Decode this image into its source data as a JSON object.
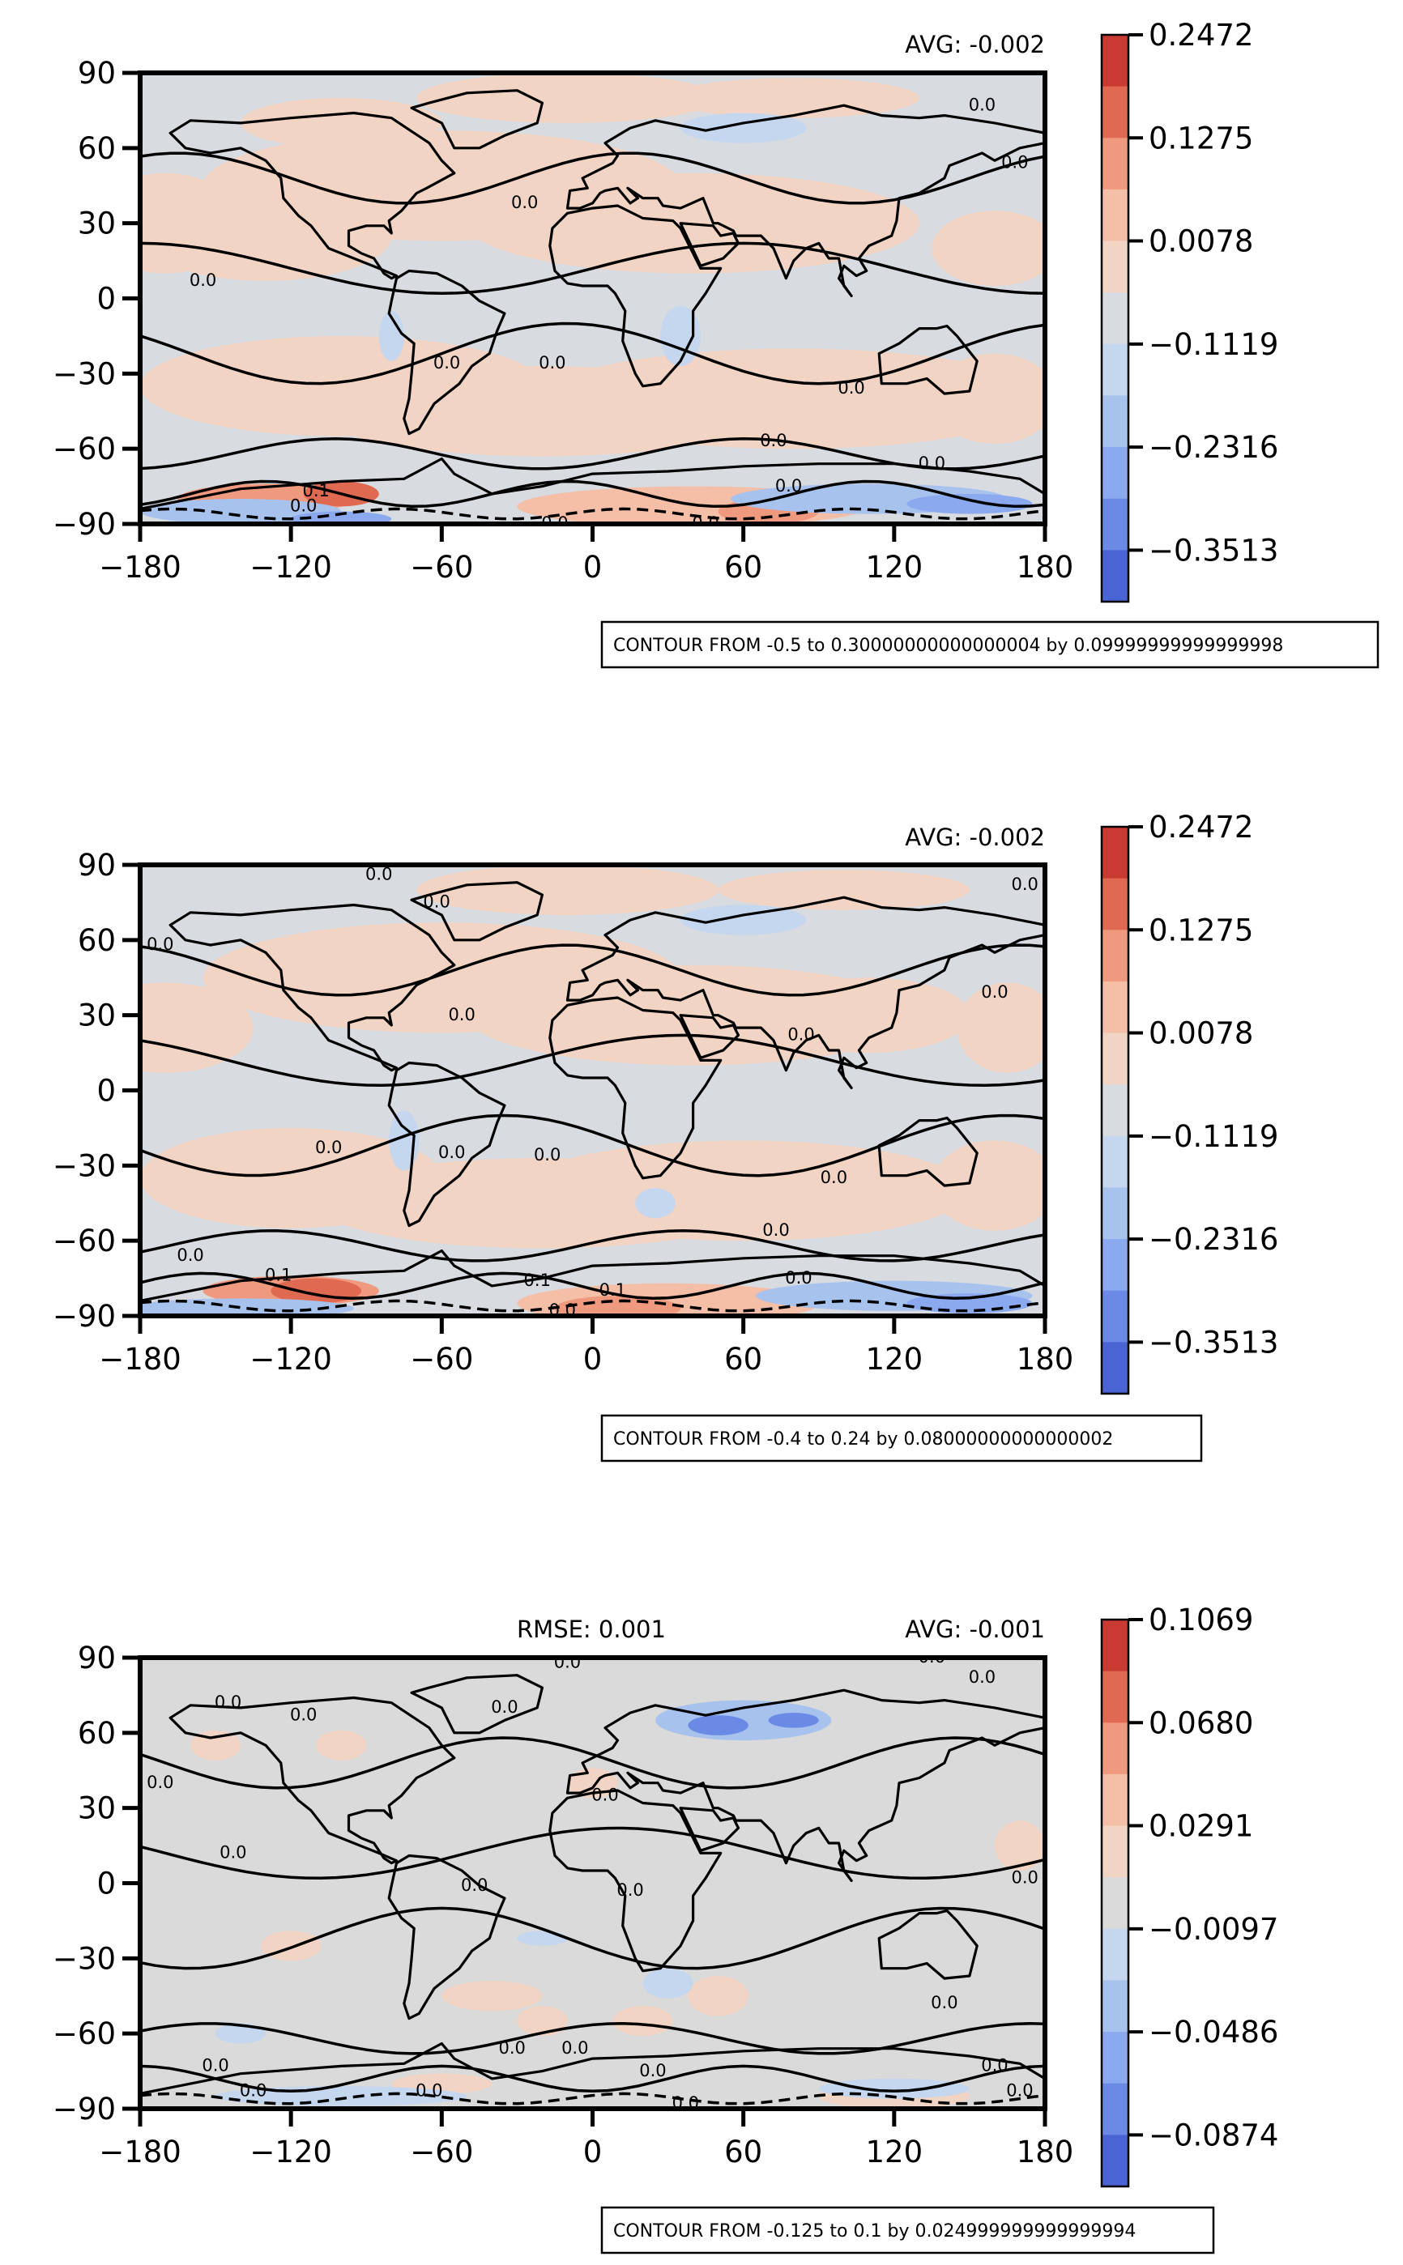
{
  "colors": {
    "warm": [
      "#f2d4c4",
      "#f4bea7",
      "#ef9a7e",
      "#e06a51",
      "#c93a33"
    ],
    "neutral": "#d8dbe0",
    "neutral_grey": "#dadada",
    "cool": [
      "#c5d6ef",
      "#a8c2ee",
      "#8aa9ee",
      "#6a8ae6",
      "#4a64d4"
    ],
    "land_line": "#000000"
  },
  "chart_data": [
    {
      "type": "heatmap",
      "panel": "top",
      "avg_label": "AVG: -0.002",
      "rmse_label": "",
      "contour_box": "CONTOUR FROM -0.5 to 0.30000000000000004 by 0.09999999999999998",
      "xticks": [
        "−180",
        "−120",
        "−60",
        "0",
        "60",
        "120",
        "180"
      ],
      "yticks": [
        "90",
        "60",
        "30",
        "0",
        "−30",
        "−60",
        "−90"
      ],
      "xlim": [
        -180,
        180
      ],
      "ylim": [
        -90,
        90
      ],
      "colorbar_ticks": [
        "0.2472",
        "0.1275",
        "0.0078",
        "−0.1119",
        "−0.2316",
        "−0.3513"
      ],
      "contour_labels": [
        {
          "text": "0.0",
          "lon": -42,
          "lat": 92
        },
        {
          "text": "0.0",
          "lon": 12,
          "lat": 92
        },
        {
          "text": "0.0",
          "lon": 155,
          "lat": 75
        },
        {
          "text": "0.0",
          "lon": 168,
          "lat": 52
        },
        {
          "text": "0.0",
          "lon": -27,
          "lat": 36
        },
        {
          "text": "0.0",
          "lon": -155,
          "lat": 5
        },
        {
          "text": "0.0",
          "lon": -58,
          "lat": -28
        },
        {
          "text": "0.0",
          "lon": -16,
          "lat": -28
        },
        {
          "text": "0.0",
          "lon": 103,
          "lat": -38
        },
        {
          "text": "0.0",
          "lon": 72,
          "lat": -59
        },
        {
          "text": "0.0",
          "lon": 78,
          "lat": -77
        },
        {
          "text": "0.0",
          "lon": 135,
          "lat": -68
        },
        {
          "text": "0.1",
          "lon": -110,
          "lat": -79
        },
        {
          "text": "0.0",
          "lon": -115,
          "lat": -85
        },
        {
          "text": "0.0",
          "lon": -15,
          "lat": -92
        },
        {
          "text": "0.0",
          "lon": 45,
          "lat": -92
        }
      ]
    },
    {
      "type": "heatmap",
      "panel": "middle",
      "avg_label": "AVG: -0.002",
      "rmse_label": "",
      "contour_box": "CONTOUR FROM -0.4 to 0.24 by 0.08000000000000002",
      "xticks": [
        "−180",
        "−120",
        "−60",
        "0",
        "60",
        "120",
        "180"
      ],
      "yticks": [
        "90",
        "60",
        "30",
        "0",
        "−30",
        "−60",
        "−90"
      ],
      "xlim": [
        -180,
        180
      ],
      "ylim": [
        -90,
        90
      ],
      "colorbar_ticks": [
        "0.2472",
        "0.1275",
        "0.0078",
        "−0.1119",
        "−0.2316",
        "−0.3513"
      ],
      "contour_labels": [
        {
          "text": "0.0",
          "lon": -85,
          "lat": 84
        },
        {
          "text": "0.0",
          "lon": -62,
          "lat": 73
        },
        {
          "text": "0.0",
          "lon": 172,
          "lat": 80
        },
        {
          "text": "0.0",
          "lon": -172,
          "lat": 56
        },
        {
          "text": "0.0",
          "lon": 160,
          "lat": 37
        },
        {
          "text": "0.0",
          "lon": -52,
          "lat": 28
        },
        {
          "text": "0.0",
          "lon": 83,
          "lat": 20
        },
        {
          "text": "0.0",
          "lon": -105,
          "lat": -25
        },
        {
          "text": "0.0",
          "lon": -56,
          "lat": -27
        },
        {
          "text": "0.0",
          "lon": -18,
          "lat": -28
        },
        {
          "text": "0.0",
          "lon": 96,
          "lat": -37
        },
        {
          "text": "0.0",
          "lon": 73,
          "lat": -58
        },
        {
          "text": "0.0",
          "lon": -160,
          "lat": -68
        },
        {
          "text": "0.0",
          "lon": 82,
          "lat": -77
        },
        {
          "text": "0.1",
          "lon": -125,
          "lat": -76
        },
        {
          "text": "0.1",
          "lon": -22,
          "lat": -78
        },
        {
          "text": "0.1",
          "lon": 8,
          "lat": -82
        },
        {
          "text": "0.0",
          "lon": -12,
          "lat": -90
        }
      ]
    },
    {
      "type": "heatmap",
      "panel": "bottom",
      "avg_label": "AVG: -0.001",
      "rmse_label": "RMSE: 0.001",
      "contour_box": "CONTOUR FROM -0.125 to 0.1 by 0.024999999999999994",
      "xticks": [
        "−180",
        "−120",
        "−60",
        "0",
        "60",
        "120",
        "180"
      ],
      "yticks": [
        "90",
        "60",
        "30",
        "0",
        "−30",
        "−60",
        "−90"
      ],
      "xlim": [
        -180,
        180
      ],
      "ylim": [
        -90,
        90
      ],
      "colorbar_ticks": [
        "0.1069",
        "0.0680",
        "0.0291",
        "−0.0097",
        "−0.0486",
        "−0.0874"
      ],
      "contour_labels": [
        {
          "text": "0.0",
          "lon": -10,
          "lat": 86
        },
        {
          "text": "0.0",
          "lon": 135,
          "lat": 88
        },
        {
          "text": "0.0",
          "lon": 155,
          "lat": 80
        },
        {
          "text": "0.0",
          "lon": -145,
          "lat": 70
        },
        {
          "text": "0.0",
          "lon": -115,
          "lat": 65
        },
        {
          "text": "0.0",
          "lon": -35,
          "lat": 68
        },
        {
          "text": "0.0",
          "lon": -172,
          "lat": 38
        },
        {
          "text": "0.0",
          "lon": 5,
          "lat": 33
        },
        {
          "text": "0.0",
          "lon": -143,
          "lat": 10
        },
        {
          "text": "0.0",
          "lon": -47,
          "lat": -3
        },
        {
          "text": "0.0",
          "lon": 15,
          "lat": -5
        },
        {
          "text": "0.0",
          "lon": 172,
          "lat": 0
        },
        {
          "text": "0.0",
          "lon": 140,
          "lat": -50
        },
        {
          "text": "0.0",
          "lon": -32,
          "lat": -68
        },
        {
          "text": "0.0",
          "lon": -7,
          "lat": -68
        },
        {
          "text": "0.0",
          "lon": -150,
          "lat": -75
        },
        {
          "text": "0.0",
          "lon": 24,
          "lat": -77
        },
        {
          "text": "0.0",
          "lon": 160,
          "lat": -75
        },
        {
          "text": "0.0",
          "lon": -135,
          "lat": -85
        },
        {
          "text": "0.0",
          "lon": -65,
          "lat": -85
        },
        {
          "text": "0.0",
          "lon": 37,
          "lat": -90
        },
        {
          "text": "0.0",
          "lon": 170,
          "lat": -85
        }
      ]
    }
  ]
}
